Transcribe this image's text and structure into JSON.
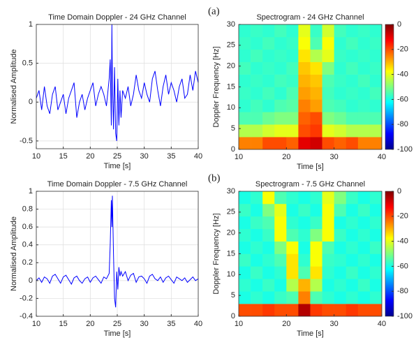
{
  "chart_data": [
    {
      "type": "line",
      "title": "Time Domain Doppler - 24 GHz Channel",
      "xlabel": "Time [s]",
      "ylabel": "Normalised Amplitude",
      "x": [
        10,
        10.5,
        11,
        11.5,
        12,
        12.5,
        13,
        13.5,
        14,
        14.5,
        15,
        15.5,
        16,
        16.5,
        17,
        17.5,
        18,
        18.5,
        19,
        19.5,
        20,
        20.5,
        21,
        21.5,
        22,
        22.5,
        23,
        23.5,
        23.7,
        23.9,
        24.0,
        24.1,
        24.3,
        24.5,
        24.7,
        24.9,
        25.1,
        25.3,
        25.5,
        25.7,
        26,
        26.5,
        27,
        27.5,
        28,
        28.5,
        29,
        29.5,
        30,
        30.5,
        31,
        31.5,
        32,
        32.5,
        33,
        33.5,
        34,
        34.5,
        35,
        35.5,
        36,
        36.5,
        37,
        37.5,
        38,
        38.5,
        39,
        39.5,
        40
      ],
      "series": [
        {
          "color": "#0000ff",
          "values": [
            0.05,
            0.15,
            -0.1,
            0.2,
            -0.05,
            -0.15,
            0.1,
            0.2,
            -0.1,
            0,
            0.1,
            -0.15,
            0.05,
            0.15,
            0.25,
            -0.2,
            0,
            0.1,
            -0.1,
            0.05,
            0.15,
            0.25,
            -0.05,
            0.1,
            0.2,
            0.1,
            -0.05,
            0.3,
            0.55,
            -0.3,
            1.0,
            0.3,
            -0.35,
            0.45,
            -0.4,
            -0.5,
            0.3,
            -0.3,
            0.15,
            -0.2,
            0.15,
            0.05,
            0.2,
            -0.05,
            0.1,
            0.35,
            0.15,
            0.05,
            0.25,
            0.1,
            0.0,
            0.3,
            0.4,
            0.15,
            -0.05,
            0.2,
            0.35,
            0.1,
            0.25,
            0.15,
            0,
            0.2,
            0.3,
            0.05,
            0.1,
            0.35,
            0.15,
            0.4,
            0.25
          ]
        }
      ],
      "xlim": [
        10,
        40
      ],
      "xticks": [
        10,
        15,
        20,
        25,
        30,
        35,
        40
      ],
      "ylim": [
        -0.6,
        1
      ],
      "yticks": [
        -0.5,
        0,
        0.5,
        1
      ],
      "grid": true
    },
    {
      "type": "heatmap",
      "title": "Spectrogram - 24 GHz Channel",
      "xlabel": "Time [s]",
      "ylabel": "Doppler Frequency [Hz]",
      "panel_label": "(a)",
      "time_bins": [
        10,
        12.5,
        15,
        17.5,
        20,
        22.5,
        25,
        27.5,
        30,
        32.5,
        35,
        37.5,
        40
      ],
      "freq_bins": [
        0,
        3,
        6,
        9,
        12,
        15,
        18,
        21,
        24,
        27,
        30
      ],
      "values": [
        [
          -25,
          -25,
          -20,
          -20,
          -22,
          -10,
          -8,
          -20,
          -22,
          -20,
          -25,
          -25
        ],
        [
          -45,
          -45,
          -42,
          -40,
          -40,
          -20,
          -18,
          -40,
          -42,
          -45,
          -45,
          -45
        ],
        [
          -55,
          -55,
          -52,
          -50,
          -50,
          -22,
          -20,
          -50,
          -52,
          -55,
          -55,
          -55
        ],
        [
          -58,
          -56,
          -58,
          -55,
          -54,
          -25,
          -28,
          -55,
          -56,
          -58,
          -57,
          -58
        ],
        [
          -57,
          -58,
          -56,
          -58,
          -55,
          -28,
          -30,
          -56,
          -58,
          -57,
          -58,
          -56
        ],
        [
          -58,
          -57,
          -58,
          -56,
          -57,
          -30,
          -32,
          -55,
          -57,
          -58,
          -56,
          -58
        ],
        [
          -56,
          -58,
          -57,
          -58,
          -56,
          -32,
          -35,
          -50,
          -58,
          -56,
          -58,
          -57
        ],
        [
          -58,
          -56,
          -58,
          -57,
          -58,
          -35,
          -45,
          -40,
          -57,
          -58,
          -57,
          -58
        ],
        [
          -57,
          -58,
          -56,
          -58,
          -57,
          -38,
          -55,
          -38,
          -58,
          -56,
          -58,
          -57
        ],
        [
          -58,
          -57,
          -58,
          -56,
          -58,
          -40,
          -57,
          -42,
          -56,
          -58,
          -57,
          -58
        ]
      ],
      "xlim": [
        10,
        40
      ],
      "xticks": [
        10,
        20,
        30,
        40
      ],
      "ylim": [
        0,
        30
      ],
      "yticks": [
        0,
        5,
        10,
        15,
        20,
        25,
        30
      ],
      "clim": [
        -100,
        0
      ],
      "cticks": [
        0,
        -20,
        -40,
        -60,
        -80,
        -100
      ],
      "colormap": "jet"
    },
    {
      "type": "line",
      "title": "Time Domain Doppler - 7.5 GHz Channel",
      "xlabel": "Time [s]",
      "ylabel": "Normalised Amplitude",
      "x": [
        10,
        10.5,
        11,
        11.5,
        12,
        12.5,
        13,
        13.5,
        14,
        14.5,
        15,
        15.5,
        16,
        16.5,
        17,
        17.5,
        18,
        18.5,
        19,
        19.5,
        20,
        20.5,
        21,
        21.5,
        22,
        22.5,
        23,
        23.5,
        23.7,
        23.9,
        24.0,
        24.1,
        24.3,
        24.5,
        24.7,
        24.9,
        25.1,
        25.3,
        25.5,
        25.7,
        26,
        26.5,
        27,
        27.5,
        28,
        28.5,
        29,
        29.5,
        30,
        30.5,
        31,
        31.5,
        32,
        32.5,
        33,
        33.5,
        34,
        34.5,
        35,
        35.5,
        36,
        36.5,
        37,
        37.5,
        38,
        38.5,
        39,
        39.5,
        40
      ],
      "series": [
        {
          "color": "#0000ff",
          "values": [
            0,
            0.03,
            -0.02,
            0.04,
            0.02,
            -0.03,
            0.05,
            0.07,
            0.02,
            -0.03,
            0.04,
            0.06,
            0.01,
            -0.04,
            0.03,
            0.05,
            0,
            -0.03,
            0.02,
            0.04,
            -0.02,
            0.03,
            0.05,
            0.01,
            -0.03,
            0.04,
            0.02,
            0.08,
            0.4,
            0.9,
            0.6,
            0.95,
            0.3,
            -0.2,
            -0.3,
            0.1,
            -0.1,
            0.15,
            0.05,
            0.1,
            0.05,
            0.1,
            0,
            0.06,
            0.08,
            -0.02,
            0.04,
            0.05,
            0.02,
            -0.03,
            0.05,
            0.07,
            0.02,
            0,
            0.04,
            -0.02,
            0.03,
            0.05,
            0.01,
            -0.03,
            0.04,
            0.02,
            0,
            0.03,
            -0.02,
            0.01,
            0.04,
            0,
            0.02
          ]
        }
      ],
      "xlim": [
        10,
        40
      ],
      "xticks": [
        10,
        15,
        20,
        25,
        30,
        35,
        40
      ],
      "ylim": [
        -0.4,
        1
      ],
      "yticks": [
        -0.4,
        -0.2,
        0,
        0.2,
        0.4,
        0.6,
        0.8,
        1
      ],
      "grid": true
    },
    {
      "type": "heatmap",
      "title": "Spectrogram - 7.5 GHz Channel",
      "xlabel": "Time [s]",
      "ylabel": "Doppler Frequency [Hz]",
      "panel_label": "(b)",
      "time_bins": [
        10,
        12.5,
        15,
        17.5,
        20,
        22.5,
        25,
        27.5,
        30,
        32.5,
        35,
        37.5,
        40
      ],
      "freq_bins": [
        0,
        3,
        6,
        9,
        12,
        15,
        18,
        21,
        24,
        27,
        30
      ],
      "values": [
        [
          -20,
          -20,
          -18,
          -20,
          -20,
          -5,
          -18,
          -20,
          -20,
          -18,
          -20,
          -20
        ],
        [
          -60,
          -58,
          -60,
          -57,
          -55,
          -25,
          -55,
          -58,
          -60,
          -58,
          -60,
          -58
        ],
        [
          -58,
          -60,
          -57,
          -60,
          -45,
          -30,
          -45,
          -60,
          -58,
          -60,
          -57,
          -60
        ],
        [
          -60,
          -57,
          -60,
          -58,
          -35,
          -55,
          -35,
          -58,
          -60,
          -57,
          -60,
          -58
        ],
        [
          -57,
          -60,
          -58,
          -55,
          -35,
          -58,
          -38,
          -57,
          -58,
          -60,
          -58,
          -60
        ],
        [
          -60,
          -58,
          -60,
          -50,
          -38,
          -60,
          -38,
          -55,
          -60,
          -58,
          -60,
          -57
        ],
        [
          -58,
          -60,
          -57,
          -38,
          -55,
          -58,
          -50,
          -38,
          -57,
          -60,
          -58,
          -60
        ],
        [
          -60,
          -57,
          -55,
          -38,
          -58,
          -60,
          -57,
          -38,
          -60,
          -58,
          -60,
          -58
        ],
        [
          -57,
          -60,
          -50,
          -40,
          -60,
          -57,
          -60,
          -38,
          -55,
          -60,
          -57,
          -60
        ],
        [
          -60,
          -58,
          -38,
          -55,
          -58,
          -60,
          -58,
          -40,
          -50,
          -57,
          -60,
          -58
        ]
      ],
      "xlim": [
        10,
        40
      ],
      "xticks": [
        10,
        20,
        30,
        40
      ],
      "ylim": [
        0,
        30
      ],
      "yticks": [
        0,
        5,
        10,
        15,
        20,
        25,
        30
      ],
      "clim": [
        -100,
        0
      ],
      "cticks": [
        0,
        -20,
        -40,
        -60,
        -80,
        -100
      ],
      "colormap": "jet"
    }
  ]
}
